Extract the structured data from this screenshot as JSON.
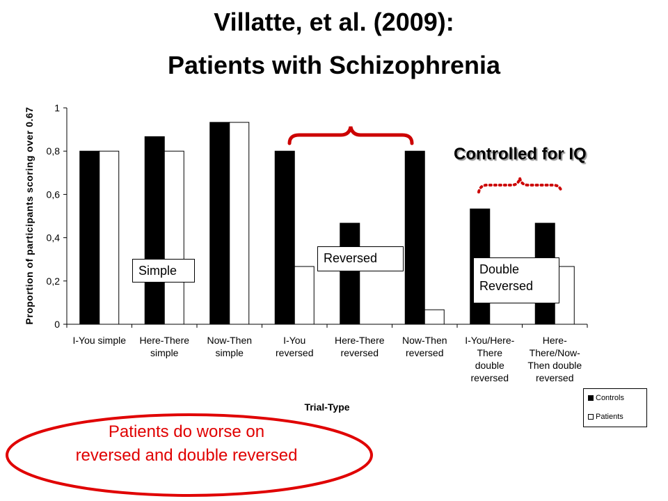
{
  "title": {
    "line1": "Villatte, et al. (2009):",
    "line2": "Patients with Schizophrenia"
  },
  "chart_data": {
    "type": "bar",
    "categories": [
      [
        "I-You simple"
      ],
      [
        "Here-There",
        "simple"
      ],
      [
        "Now-Then",
        "simple"
      ],
      [
        "I-You",
        "reversed"
      ],
      [
        "Here-There",
        "reversed"
      ],
      [
        "Now-Then",
        "reversed"
      ],
      [
        "I-You/Here-",
        "There",
        "double",
        "reversed"
      ],
      [
        "Here-",
        "There/Now-",
        "Then double",
        "reversed"
      ]
    ],
    "series": [
      {
        "name": "Controls",
        "values": [
          0.8,
          0.867,
          0.933,
          0.8,
          0.467,
          0.8,
          0.533,
          0.467
        ],
        "color": "#000000"
      },
      {
        "name": "Patients",
        "values": [
          0.8,
          0.8,
          0.933,
          0.267,
          0.0,
          0.067,
          0.0,
          0.267
        ],
        "color": "#ffffff"
      }
    ],
    "ylim": [
      0,
      1
    ],
    "yticks": [
      {
        "v": 0,
        "label": "0"
      },
      {
        "v": 0.2,
        "label": "0,2"
      },
      {
        "v": 0.4,
        "label": "0,4"
      },
      {
        "v": 0.6,
        "label": "0,6"
      },
      {
        "v": 0.8,
        "label": "0,8"
      },
      {
        "v": 1,
        "label": "1"
      }
    ],
    "xlabel": "Trial-Type",
    "ylabel": "Proportion of participants scoring over 0.67",
    "legend_position": "bottom-right",
    "grid": false
  },
  "annotations": {
    "simple_label": "Simple",
    "reversed_label": "Reversed",
    "double_reversed_label": [
      "Double",
      "Reversed"
    ],
    "controlled_label": "Controlled for IQ",
    "conclusion": "Patients do worse on reversed and double reversed",
    "bracket_color": "#cc0000",
    "conclusion_color": "#e00000"
  },
  "legend": {
    "controls": "Controls",
    "patients": "Patients"
  }
}
